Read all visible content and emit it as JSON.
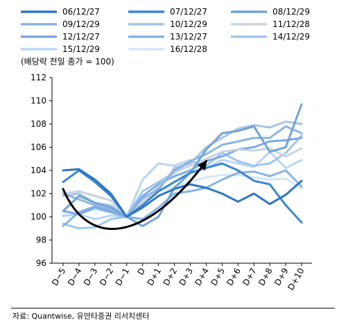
{
  "chart_data": {
    "type": "line",
    "unit_label": "(배당락 전일 종가 = 100)",
    "source": "자료: Quantwise, 유안타증권 리서치센터",
    "categories": [
      "D−5",
      "D−4",
      "D−3",
      "D−2",
      "D−1",
      "D",
      "D+1",
      "D+2",
      "D+3",
      "D+4",
      "D+5",
      "D+6",
      "D+7",
      "D+8",
      "D+9",
      "D+10"
    ],
    "yticks": [
      "96",
      "98",
      "100",
      "102",
      "104",
      "106",
      "108",
      "110",
      "112"
    ],
    "ylim": [
      96,
      112
    ],
    "grid": false,
    "legend_position": "top",
    "series": [
      {
        "name": "06/12/27",
        "color": "#2e75c4",
        "width": 3,
        "values": [
          104.0,
          104.1,
          103.2,
          102.0,
          100.0,
          100.8,
          101.8,
          102.4,
          102.8,
          102.5,
          102.0,
          101.3,
          102.0,
          101.1,
          101.9,
          103.1
        ]
      },
      {
        "name": "07/12/27",
        "color": "#3a86d3",
        "width": 3,
        "values": [
          103.0,
          104.0,
          103.0,
          101.8,
          100.0,
          101.0,
          102.2,
          103.0,
          103.8,
          104.2,
          104.6,
          104.0,
          103.1,
          102.8,
          101.0,
          99.5
        ]
      },
      {
        "name": "08/12/29",
        "color": "#6fa4d9",
        "width": 3,
        "values": [
          100.5,
          101.8,
          101.2,
          100.8,
          100.0,
          99.2,
          100.0,
          102.5,
          103.8,
          105.8,
          107.2,
          107.4,
          107.8,
          105.6,
          106.0,
          109.7
        ]
      },
      {
        "name": "09/12/29",
        "color": "#8cb4df",
        "width": 3,
        "values": [
          102.0,
          101.5,
          101.0,
          100.6,
          100.0,
          101.6,
          102.4,
          104.0,
          104.8,
          105.4,
          106.2,
          106.5,
          106.8,
          106.8,
          107.8,
          107.2
        ]
      },
      {
        "name": "10/12/29",
        "color": "#a6c3e3",
        "width": 3,
        "values": [
          101.8,
          102.0,
          101.2,
          101.0,
          100.0,
          101.0,
          102.3,
          104.2,
          104.6,
          106.0,
          106.8,
          107.6,
          107.9,
          107.7,
          108.2,
          108.0
        ]
      },
      {
        "name": "11/12/28",
        "color": "#c7d3e0",
        "width": 3,
        "values": [
          102.0,
          102.2,
          101.8,
          101.4,
          100.0,
          101.2,
          102.6,
          103.8,
          104.4,
          105.0,
          105.6,
          105.8,
          105.7,
          105.9,
          105.2,
          105.9
        ]
      },
      {
        "name": "12/12/27",
        "color": "#7aa9e6",
        "width": 3,
        "values": [
          100.5,
          100.2,
          100.8,
          100.4,
          100.0,
          101.8,
          102.8,
          103.5,
          104.0,
          104.8,
          105.2,
          105.8,
          106.0,
          106.5,
          106.6,
          106.8
        ]
      },
      {
        "name": "13/12/27",
        "color": "#86b3e8",
        "width": 3,
        "values": [
          99.2,
          100.4,
          100.9,
          100.5,
          100.0,
          99.8,
          100.8,
          102.0,
          102.2,
          102.5,
          103.2,
          103.8,
          103.9,
          103.5,
          104.0,
          102.6
        ]
      },
      {
        "name": "14/12/29",
        "color": "#9fc6ee",
        "width": 3,
        "values": [
          99.4,
          99.0,
          99.1,
          99.8,
          100.0,
          102.2,
          103.0,
          103.8,
          104.8,
          104.4,
          105.5,
          104.8,
          104.4,
          104.6,
          105.5,
          107.0
        ]
      },
      {
        "name": "15/12/29",
        "color": "#b6d6f4",
        "width": 3,
        "values": [
          100.1,
          100.2,
          99.8,
          100.1,
          100.0,
          103.2,
          104.6,
          104.4,
          104.9,
          104.2,
          104.9,
          104.6,
          104.3,
          105.6,
          104.2,
          104.9
        ]
      },
      {
        "name": "16/12/28",
        "color": "#d4e6f7",
        "width": 3,
        "values": [
          100.0,
          100.3,
          100.6,
          100.4,
          100.0,
          101.4,
          102.2,
          102.6,
          103.0,
          103.4,
          103.6,
          103.6,
          103.4,
          103.2,
          103.3,
          102.4
        ]
      }
    ]
  }
}
